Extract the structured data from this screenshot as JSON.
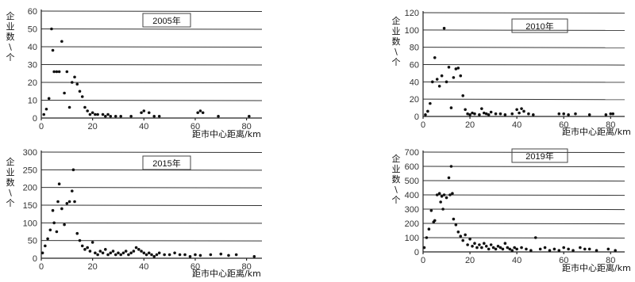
{
  "chart_data": [
    {
      "type": "scatter",
      "title": "2005年",
      "xlabel": "距市中心距离/km",
      "ylabel": "企业数/个",
      "xlim": [
        0,
        86
      ],
      "ylim": [
        0,
        60
      ],
      "xticks": [
        0,
        20,
        40,
        60,
        80
      ],
      "yticks": [
        0,
        10,
        20,
        30,
        40,
        50,
        60
      ],
      "grid": true,
      "points": [
        [
          1,
          2
        ],
        [
          2,
          5
        ],
        [
          3,
          11
        ],
        [
          4,
          50
        ],
        [
          4.5,
          38
        ],
        [
          5,
          26
        ],
        [
          6,
          26
        ],
        [
          7,
          26
        ],
        [
          8,
          43
        ],
        [
          9,
          14
        ],
        [
          10,
          26
        ],
        [
          11,
          6
        ],
        [
          12,
          20
        ],
        [
          13,
          23
        ],
        [
          14,
          19
        ],
        [
          15,
          15
        ],
        [
          16,
          12
        ],
        [
          17,
          6
        ],
        [
          18,
          4
        ],
        [
          19,
          2
        ],
        [
          20,
          3
        ],
        [
          21,
          2
        ],
        [
          22,
          2
        ],
        [
          24,
          2
        ],
        [
          25,
          1
        ],
        [
          26,
          2
        ],
        [
          27,
          1
        ],
        [
          29,
          1
        ],
        [
          31,
          1
        ],
        [
          35,
          1
        ],
        [
          39,
          3
        ],
        [
          40,
          4
        ],
        [
          42,
          3
        ],
        [
          44,
          1
        ],
        [
          46,
          1
        ],
        [
          61,
          3
        ],
        [
          62,
          4
        ],
        [
          63,
          3
        ],
        [
          69,
          1
        ],
        [
          81,
          1
        ]
      ]
    },
    {
      "type": "scatter",
      "title": "2010年",
      "xlabel": "距市中心距离/km",
      "ylabel": "企业数/个",
      "xlim": [
        0,
        86
      ],
      "ylim": [
        0,
        120
      ],
      "xticks": [
        0,
        20,
        40,
        60,
        80
      ],
      "yticks": [
        0,
        20,
        40,
        60,
        80,
        100,
        120
      ],
      "grid": true,
      "points": [
        [
          1,
          2
        ],
        [
          2,
          6
        ],
        [
          3,
          15
        ],
        [
          4,
          40
        ],
        [
          5,
          68
        ],
        [
          6,
          43
        ],
        [
          7,
          35
        ],
        [
          8,
          47
        ],
        [
          9,
          102
        ],
        [
          10,
          40
        ],
        [
          11,
          57
        ],
        [
          12,
          10
        ],
        [
          13,
          45
        ],
        [
          14,
          55
        ],
        [
          15,
          56
        ],
        [
          16,
          47
        ],
        [
          17,
          24
        ],
        [
          18,
          8
        ],
        [
          19,
          3
        ],
        [
          20,
          2
        ],
        [
          21,
          4
        ],
        [
          22,
          3
        ],
        [
          24,
          2
        ],
        [
          25,
          9
        ],
        [
          26,
          4
        ],
        [
          27,
          3
        ],
        [
          28,
          2
        ],
        [
          29,
          5
        ],
        [
          31,
          3
        ],
        [
          33,
          3
        ],
        [
          35,
          2
        ],
        [
          38,
          3
        ],
        [
          40,
          8
        ],
        [
          41,
          4
        ],
        [
          42,
          9
        ],
        [
          43,
          6
        ],
        [
          45,
          3
        ],
        [
          47,
          2
        ],
        [
          58,
          3
        ],
        [
          60,
          3
        ],
        [
          62,
          2
        ],
        [
          65,
          3
        ],
        [
          71,
          2
        ],
        [
          78,
          2
        ],
        [
          80,
          3
        ],
        [
          81,
          3
        ]
      ]
    },
    {
      "type": "scatter",
      "title": "2015年",
      "xlabel": "距市中心距离/km",
      "ylabel": "企业数/个",
      "xlim": [
        0,
        86
      ],
      "ylim": [
        0,
        300
      ],
      "xticks": [
        0,
        20,
        40,
        60,
        80
      ],
      "yticks": [
        0,
        50,
        100,
        150,
        200,
        250,
        300
      ],
      "grid": true,
      "points": [
        [
          0.5,
          15
        ],
        [
          1.5,
          35
        ],
        [
          2.5,
          55
        ],
        [
          3.5,
          80
        ],
        [
          4.5,
          135
        ],
        [
          5,
          100
        ],
        [
          6,
          75
        ],
        [
          6.5,
          160
        ],
        [
          7,
          210
        ],
        [
          8,
          140
        ],
        [
          9,
          95
        ],
        [
          10,
          155
        ],
        [
          11,
          160
        ],
        [
          12,
          190
        ],
        [
          12.5,
          250
        ],
        [
          13,
          160
        ],
        [
          14,
          70
        ],
        [
          15,
          50
        ],
        [
          16,
          35
        ],
        [
          17,
          25
        ],
        [
          18,
          30
        ],
        [
          19,
          20
        ],
        [
          20,
          45
        ],
        [
          21,
          15
        ],
        [
          22,
          10
        ],
        [
          23,
          20
        ],
        [
          24,
          15
        ],
        [
          25,
          25
        ],
        [
          26,
          10
        ],
        [
          27,
          15
        ],
        [
          28,
          20
        ],
        [
          29,
          10
        ],
        [
          30,
          15
        ],
        [
          31,
          10
        ],
        [
          32,
          15
        ],
        [
          33,
          20
        ],
        [
          34,
          10
        ],
        [
          35,
          15
        ],
        [
          36,
          20
        ],
        [
          37,
          30
        ],
        [
          38,
          25
        ],
        [
          39,
          20
        ],
        [
          40,
          15
        ],
        [
          41,
          10
        ],
        [
          42,
          15
        ],
        [
          43,
          10
        ],
        [
          44,
          5
        ],
        [
          45,
          10
        ],
        [
          46,
          15
        ],
        [
          48,
          10
        ],
        [
          50,
          10
        ],
        [
          52,
          15
        ],
        [
          54,
          10
        ],
        [
          56,
          10
        ],
        [
          58,
          5
        ],
        [
          60,
          10
        ],
        [
          62,
          8
        ],
        [
          66,
          10
        ],
        [
          70,
          12
        ],
        [
          73,
          8
        ],
        [
          76,
          10
        ],
        [
          83,
          5
        ]
      ]
    },
    {
      "type": "scatter",
      "title": "2019年",
      "xlabel": "距市中心距离/km",
      "ylabel": "企业数/个",
      "xlim": [
        0,
        86
      ],
      "ylim": [
        0,
        700
      ],
      "xticks": [
        0,
        20,
        40,
        60,
        80
      ],
      "yticks": [
        0,
        100,
        200,
        300,
        400,
        500,
        600,
        700
      ],
      "grid": true,
      "points": [
        [
          0.5,
          30
        ],
        [
          1.5,
          100
        ],
        [
          2.5,
          160
        ],
        [
          3.5,
          290
        ],
        [
          4.5,
          210
        ],
        [
          5,
          220
        ],
        [
          6,
          400
        ],
        [
          7,
          410
        ],
        [
          7.5,
          350
        ],
        [
          8,
          390
        ],
        [
          8.5,
          300
        ],
        [
          9,
          400
        ],
        [
          10,
          380
        ],
        [
          11,
          520
        ],
        [
          11.5,
          400
        ],
        [
          12,
          600
        ],
        [
          12.5,
          410
        ],
        [
          13,
          230
        ],
        [
          14,
          190
        ],
        [
          15,
          140
        ],
        [
          16,
          110
        ],
        [
          17,
          80
        ],
        [
          18,
          120
        ],
        [
          19,
          50
        ],
        [
          20,
          90
        ],
        [
          21,
          40
        ],
        [
          22,
          60
        ],
        [
          23,
          30
        ],
        [
          24,
          50
        ],
        [
          25,
          30
        ],
        [
          26,
          60
        ],
        [
          27,
          40
        ],
        [
          28,
          20
        ],
        [
          29,
          50
        ],
        [
          30,
          30
        ],
        [
          31,
          20
        ],
        [
          32,
          40
        ],
        [
          33,
          30
        ],
        [
          34,
          20
        ],
        [
          35,
          60
        ],
        [
          36,
          30
        ],
        [
          37,
          20
        ],
        [
          38,
          10
        ],
        [
          39,
          30
        ],
        [
          40,
          20
        ],
        [
          42,
          30
        ],
        [
          44,
          20
        ],
        [
          46,
          10
        ],
        [
          48,
          100
        ],
        [
          50,
          20
        ],
        [
          52,
          30
        ],
        [
          54,
          10
        ],
        [
          56,
          20
        ],
        [
          58,
          10
        ],
        [
          60,
          30
        ],
        [
          62,
          20
        ],
        [
          64,
          10
        ],
        [
          67,
          30
        ],
        [
          69,
          20
        ],
        [
          71,
          20
        ],
        [
          74,
          10
        ],
        [
          79,
          20
        ],
        [
          82,
          10
        ]
      ]
    }
  ]
}
